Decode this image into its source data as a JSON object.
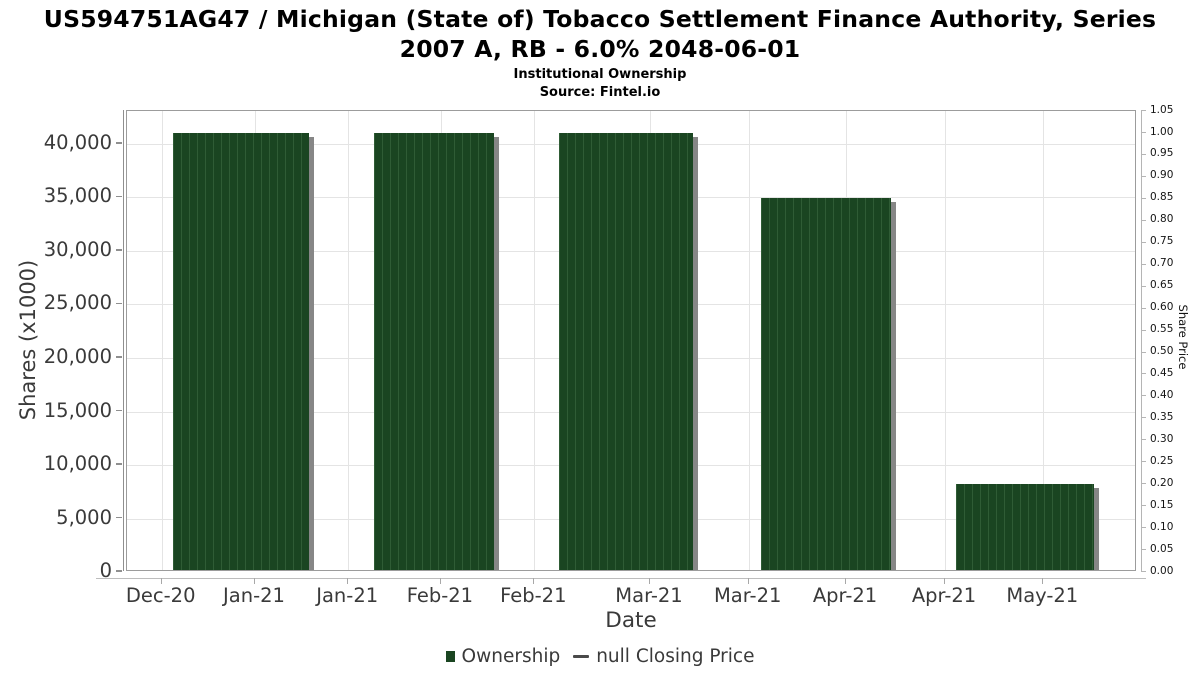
{
  "title_lines": [
    "US594751AG47 / Michigan (State of) Tobacco Settlement Finance Authority, Series",
    "2007 A, RB - 6.0% 2048-06-01"
  ],
  "subtitle": "Institutional Ownership",
  "source": "Source: Fintel.io",
  "colors": {
    "bar_fill": "#1a4521",
    "bar_stripe": "#2f5c35",
    "bar_shadow": "#868686",
    "grid": "#e4e4e4",
    "spine": "#9c9c9c",
    "axis_text": "#3a3a3a"
  },
  "legend": {
    "items": [
      {
        "marker": "square",
        "label": "Ownership"
      },
      {
        "marker": "dash",
        "label": "null Closing Price"
      }
    ]
  },
  "chart_data": {
    "type": "bar",
    "title": "US594751AG47 / Michigan (State of) Tobacco Settlement Finance Authority, Series 2007 A, RB - 6.0% 2048-06-01",
    "subtitle": "Institutional Ownership",
    "source": "Source: Fintel.io",
    "xlabel": "Date",
    "ylabel_left": "Shares (x1000)",
    "ylabel_right": "Share Price",
    "grid": true,
    "legend_position": "bottom-center",
    "ylim_left": [
      0,
      43075
    ],
    "ylim_right": [
      0.0,
      1.05
    ],
    "x_ticks": [
      {
        "label": "Dec-20",
        "pct": 3.44
      },
      {
        "label": "Jan-21",
        "pct": 12.67
      },
      {
        "label": "Jan-21",
        "pct": 21.9
      },
      {
        "label": "Feb-21",
        "pct": 31.08
      },
      {
        "label": "Feb-21",
        "pct": 40.33
      },
      {
        "label": "Mar-21",
        "pct": 51.78
      },
      {
        "label": "Mar-21",
        "pct": 61.55
      },
      {
        "label": "Apr-21",
        "pct": 71.19
      },
      {
        "label": "Apr-21",
        "pct": 80.99
      },
      {
        "label": "May-21",
        "pct": 90.72
      }
    ],
    "y_left_ticks": [
      {
        "label": "0",
        "value": 0
      },
      {
        "label": "5,000",
        "value": 5000
      },
      {
        "label": "10,000",
        "value": 10000
      },
      {
        "label": "15,000",
        "value": 15000
      },
      {
        "label": "20,000",
        "value": 20000
      },
      {
        "label": "25,000",
        "value": 25000
      },
      {
        "label": "30,000",
        "value": 30000
      },
      {
        "label": "35,000",
        "value": 35000
      },
      {
        "label": "40,000",
        "value": 40000
      }
    ],
    "y_right_ticks": [
      "1.05",
      "1.00",
      "0.95",
      "0.90",
      "0.85",
      "0.80",
      "0.75",
      "0.70",
      "0.65",
      "0.60",
      "0.55",
      "0.50",
      "0.45",
      "0.40",
      "0.35",
      "0.30",
      "0.25",
      "0.20",
      "0.15",
      "0.10",
      "0.05",
      "0.00"
    ],
    "series": [
      {
        "name": "Ownership",
        "type": "bar",
        "unit": "shares x1000",
        "bars": [
          {
            "period": "Dec-20 to Jan-21",
            "value": 41000,
            "left_pct": 4.55,
            "width_pct": 13.47
          },
          {
            "period": "Jan-21 to Feb-21",
            "value": 41000,
            "left_pct": 24.46,
            "width_pct": 11.88
          },
          {
            "period": "Feb-21 to Mar-21",
            "value": 41000,
            "left_pct": 42.77,
            "width_pct": 13.27
          },
          {
            "period": "Mar-21 to Apr-21",
            "value": 34950,
            "left_pct": 62.77,
            "width_pct": 12.87
          },
          {
            "period": "Apr-21 to May-21",
            "value": 8060,
            "left_pct": 82.08,
            "width_pct": 13.66
          }
        ]
      },
      {
        "name": "null Closing Price",
        "type": "line",
        "values": null
      }
    ]
  }
}
